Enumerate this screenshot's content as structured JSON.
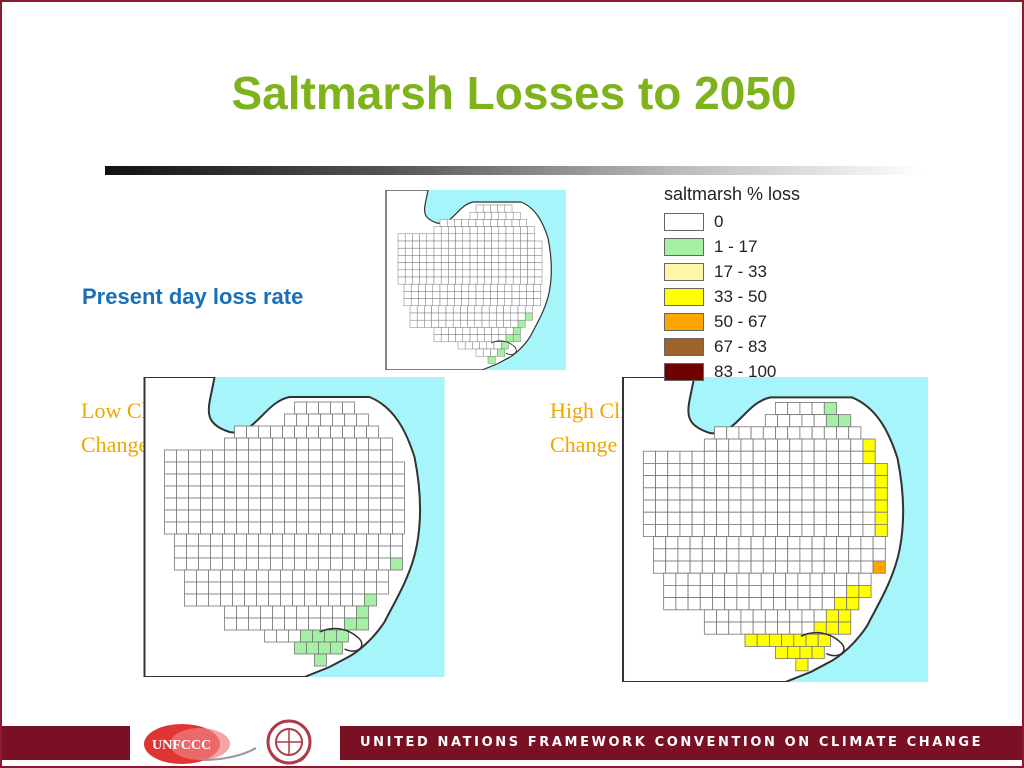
{
  "slide": {
    "title": "Saltmarsh Losses to 2050",
    "label_present": "Present day loss rate",
    "label_low": "Low Climate Change",
    "label_high": "High Climate Change"
  },
  "legend": {
    "title": "saltmarsh % loss",
    "classes": [
      {
        "label": "0",
        "color": "#ffffff"
      },
      {
        "label": "1 - 17",
        "color": "#a6f0a6"
      },
      {
        "label": "17 - 33",
        "color": "#fff7a8"
      },
      {
        "label": "33 - 50",
        "color": "#ffff00"
      },
      {
        "label": "50 - 67",
        "color": "#ffa500"
      },
      {
        "label": "67 - 83",
        "color": "#a0622d"
      },
      {
        "label": "83 - 100",
        "color": "#6e0000"
      }
    ]
  },
  "map_colors": {
    "sea": "#a6f5fa",
    "grid_line": "#777777",
    "coast": "#333333"
  },
  "footer": {
    "text": "UNITED NATIONS FRAMEWORK CONVENTION ON CLIMATE CHANGE",
    "logo_text": "UNFCCC",
    "band_color": "#7a1024"
  }
}
